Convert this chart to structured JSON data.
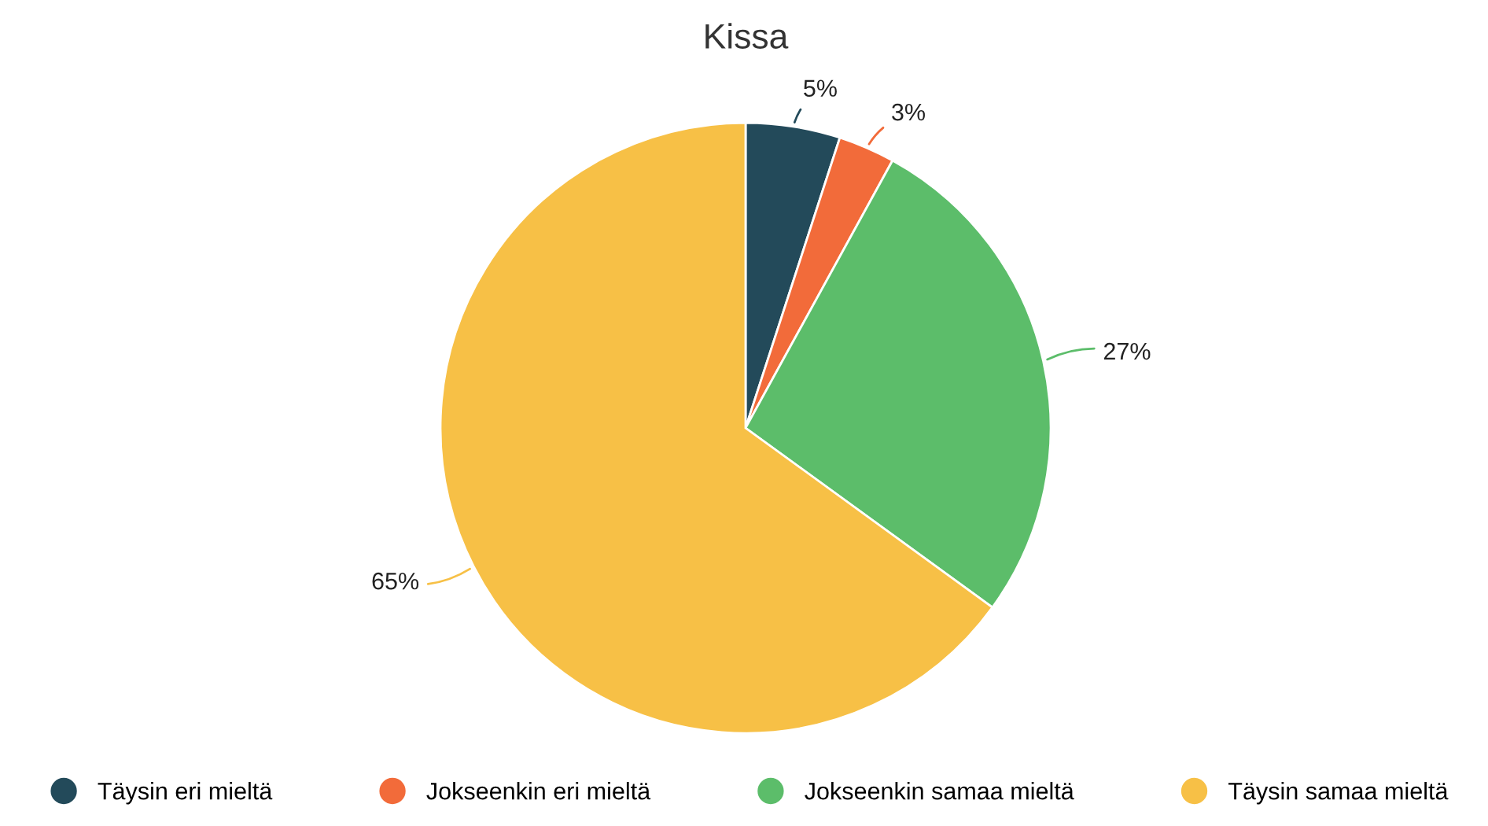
{
  "chart_data": {
    "type": "pie",
    "title": "Kissa",
    "categories": [
      "Täysin eri mieltä",
      "Jokseenkin eri mieltä",
      "Jokseenkin samaa mieltä",
      "Täysin samaa mieltä"
    ],
    "values": [
      5,
      3,
      27,
      65
    ],
    "colors": [
      "#234a5a",
      "#f26b3a",
      "#5cbd6a",
      "#f7c046"
    ],
    "value_labels": [
      "5%",
      "3%",
      "27%",
      "65%"
    ],
    "legend": "bottom"
  }
}
